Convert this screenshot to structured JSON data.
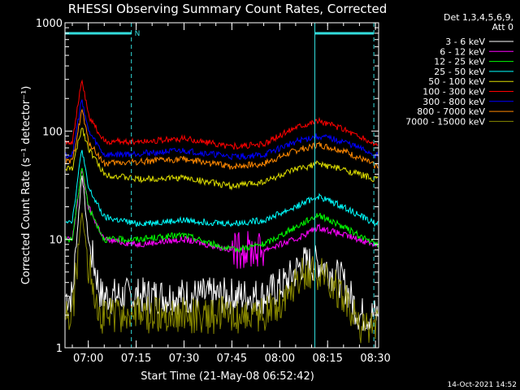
{
  "title": "RHESSI Observing Summary Count Rates, Corrected",
  "legend": {
    "header_line1": "Det 1,3,4,5,6,9,",
    "header_line2": "Att 0"
  },
  "footer_timestamp": "14-Oct-2021 14:52",
  "colors": {
    "background": "#000000",
    "axes": "#ffffff",
    "markers": "#33dddd"
  },
  "chart_data": {
    "type": "line",
    "title": "RHESSI Observing Summary Count Rates, Corrected",
    "xlabel": "Start Time (21-May-08 06:52:42)",
    "ylabel": "Corrected Count Rate (s⁻¹ detector⁻¹)",
    "yscale": "log",
    "ylim": [
      1,
      1000
    ],
    "xlim": [
      "06:52:42",
      "08:31:00"
    ],
    "x_ticks": [
      "07:00",
      "07:15",
      "07:30",
      "07:45",
      "08:00",
      "08:15",
      "08:30"
    ],
    "y_ticks": [
      "1",
      "10",
      "100",
      "1000"
    ],
    "markers": {
      "vertical_lines_at": [
        "06:52:42",
        "07:13:30",
        "08:11:00",
        "08:29:30"
      ],
      "night_bars": [
        [
          "06:52:42",
          "07:13:30"
        ],
        [
          "08:11:00",
          "08:29:30"
        ]
      ],
      "flag_text": "N"
    },
    "series": [
      {
        "name": "3 - 6 keV",
        "color": "#ffffff",
        "points": [
          [
            "06:55",
            3
          ],
          [
            "06:58",
            42
          ],
          [
            "07:00",
            10
          ],
          [
            "07:04",
            3
          ],
          [
            "07:30",
            3
          ],
          [
            "07:55",
            3
          ],
          [
            "08:02",
            4
          ],
          [
            "08:07",
            6
          ],
          [
            "08:13",
            6
          ],
          [
            "08:20",
            4
          ],
          [
            "08:25",
            2
          ],
          [
            "08:30",
            2
          ]
        ]
      },
      {
        "name": "6 - 12 keV",
        "color": "#ff00ff",
        "points": [
          [
            "06:55",
            10
          ],
          [
            "06:58",
            45
          ],
          [
            "07:00",
            20
          ],
          [
            "07:05",
            10
          ],
          [
            "07:15",
            9
          ],
          [
            "07:30",
            10
          ],
          [
            "07:45",
            8
          ],
          [
            "07:55",
            8
          ],
          [
            "08:05",
            10
          ],
          [
            "08:12",
            13
          ],
          [
            "08:20",
            11
          ],
          [
            "08:30",
            9
          ]
        ]
      },
      {
        "name": "12 - 25 keV",
        "color": "#00ff00",
        "points": [
          [
            "06:55",
            10
          ],
          [
            "06:58",
            48
          ],
          [
            "07:00",
            20
          ],
          [
            "07:05",
            10
          ],
          [
            "07:15",
            10
          ],
          [
            "07:30",
            11
          ],
          [
            "07:45",
            8
          ],
          [
            "07:55",
            9
          ],
          [
            "08:05",
            13
          ],
          [
            "08:12",
            17
          ],
          [
            "08:20",
            13
          ],
          [
            "08:30",
            9
          ]
        ]
      },
      {
        "name": "25 - 50 keV",
        "color": "#00ffff",
        "points": [
          [
            "06:55",
            15
          ],
          [
            "06:58",
            70
          ],
          [
            "07:00",
            30
          ],
          [
            "07:05",
            16
          ],
          [
            "07:15",
            14
          ],
          [
            "07:30",
            15
          ],
          [
            "07:45",
            14
          ],
          [
            "07:55",
            15
          ],
          [
            "08:05",
            20
          ],
          [
            "08:12",
            25
          ],
          [
            "08:20",
            20
          ],
          [
            "08:30",
            14
          ]
        ]
      },
      {
        "name": "50 - 100 keV",
        "color": "#dddd00",
        "points": [
          [
            "06:55",
            45
          ],
          [
            "06:58",
            110
          ],
          [
            "07:00",
            70
          ],
          [
            "07:05",
            40
          ],
          [
            "07:15",
            36
          ],
          [
            "07:30",
            37
          ],
          [
            "07:45",
            31
          ],
          [
            "07:55",
            34
          ],
          [
            "08:05",
            44
          ],
          [
            "08:12",
            50
          ],
          [
            "08:20",
            44
          ],
          [
            "08:30",
            36
          ]
        ]
      },
      {
        "name": "100 - 300 keV",
        "color": "#ff0000",
        "points": [
          [
            "06:55",
            80
          ],
          [
            "06:58",
            300
          ],
          [
            "07:00",
            140
          ],
          [
            "07:05",
            80
          ],
          [
            "07:15",
            80
          ],
          [
            "07:30",
            85
          ],
          [
            "07:45",
            72
          ],
          [
            "07:55",
            75
          ],
          [
            "08:05",
            110
          ],
          [
            "08:12",
            125
          ],
          [
            "08:20",
            105
          ],
          [
            "08:30",
            75
          ]
        ]
      },
      {
        "name": "300 - 800 keV",
        "color": "#0000ff",
        "points": [
          [
            "06:55",
            60
          ],
          [
            "06:58",
            200
          ],
          [
            "07:00",
            100
          ],
          [
            "07:05",
            60
          ],
          [
            "07:15",
            62
          ],
          [
            "07:30",
            66
          ],
          [
            "07:45",
            58
          ],
          [
            "07:55",
            60
          ],
          [
            "08:05",
            80
          ],
          [
            "08:12",
            90
          ],
          [
            "08:20",
            80
          ],
          [
            "08:30",
            60
          ]
        ]
      },
      {
        "name": "800 - 7000 keV",
        "color": "#ff8800",
        "points": [
          [
            "06:55",
            52
          ],
          [
            "06:58",
            160
          ],
          [
            "07:00",
            80
          ],
          [
            "07:05",
            50
          ],
          [
            "07:15",
            52
          ],
          [
            "07:30",
            55
          ],
          [
            "07:45",
            47
          ],
          [
            "07:55",
            50
          ],
          [
            "08:05",
            66
          ],
          [
            "08:12",
            75
          ],
          [
            "08:20",
            66
          ],
          [
            "08:30",
            48
          ]
        ]
      },
      {
        "name": "7000 - 15000 keV",
        "color": "#888800",
        "points": [
          [
            "06:55",
            2
          ],
          [
            "06:58",
            18
          ],
          [
            "07:00",
            6
          ],
          [
            "07:04",
            2
          ],
          [
            "07:30",
            2
          ],
          [
            "07:55",
            2
          ],
          [
            "08:02",
            3
          ],
          [
            "08:07",
            5
          ],
          [
            "08:13",
            5
          ],
          [
            "08:20",
            3
          ],
          [
            "08:25",
            1.5
          ],
          [
            "08:30",
            1.5
          ]
        ]
      }
    ]
  }
}
